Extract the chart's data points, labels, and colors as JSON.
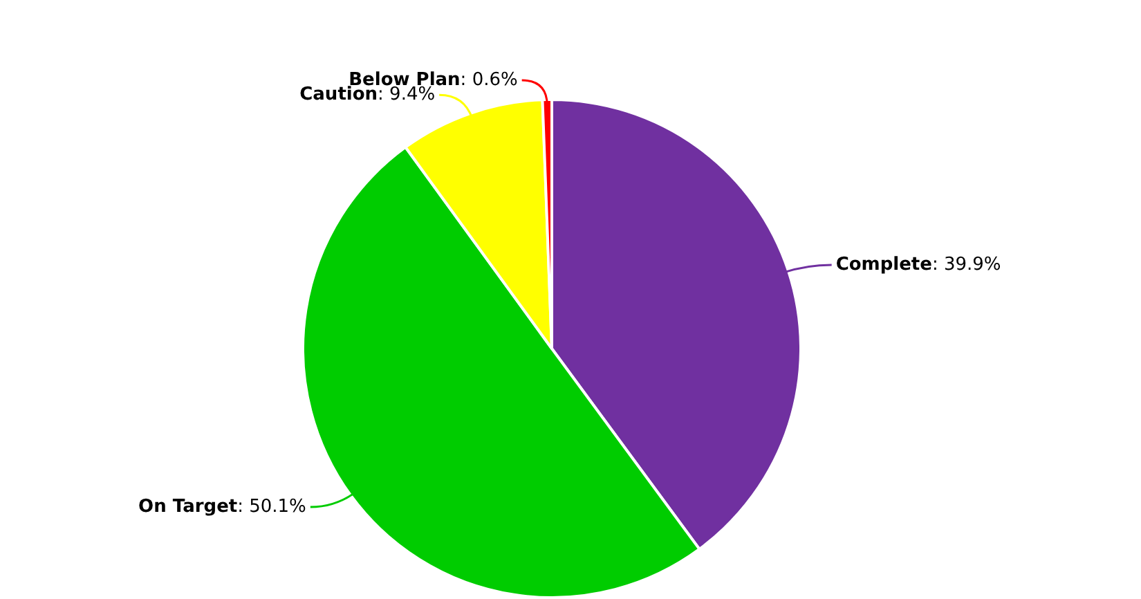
{
  "chart_data": {
    "type": "pie",
    "categories": [
      "Complete",
      "On Target",
      "Caution",
      "Below Plan"
    ],
    "values": [
      39.9,
      50.1,
      9.4,
      0.6
    ],
    "value_labels": [
      ": 39.9%",
      ": 50.1%",
      ": 9.4%",
      ": 0.6%"
    ],
    "colors": [
      "#7030a0",
      "#00cc00",
      "#ffff00",
      "#ff0000"
    ],
    "legend": false
  }
}
